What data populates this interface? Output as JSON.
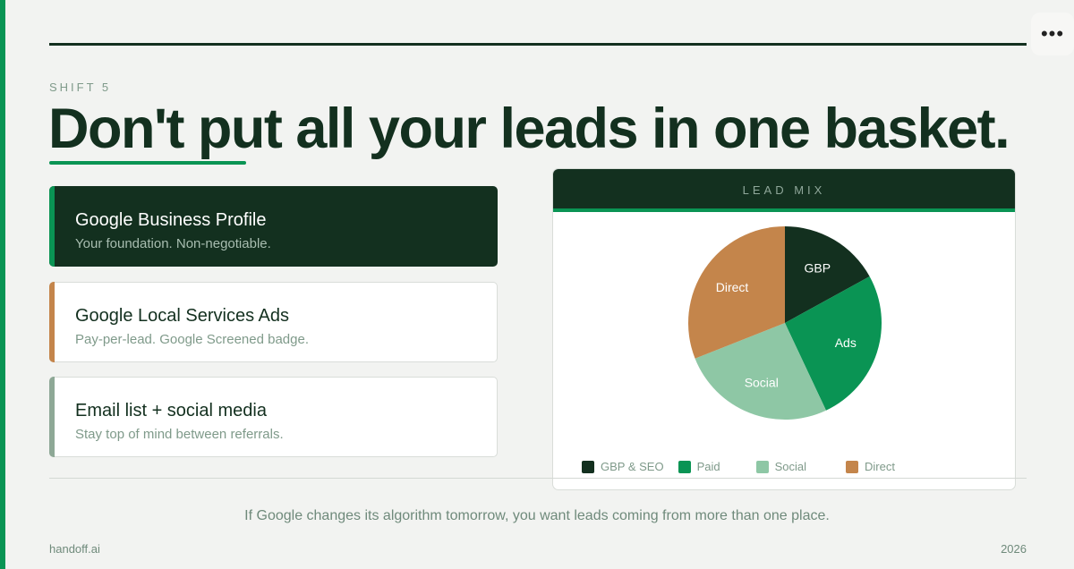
{
  "eyebrow": "SHIFT 5",
  "title": "Don't put all your leads in one basket.",
  "menu_icon": "more-horizontal-icon",
  "cards": [
    {
      "title": "Google Business Profile",
      "subtitle": "Your foundation. Non-negotiable.",
      "accent": "#0a9454"
    },
    {
      "title": "Google Local Services Ads",
      "subtitle": "Pay-per-lead. Google Screened badge.",
      "accent": "#c4854b"
    },
    {
      "title": "Email list + social media",
      "subtitle": "Stay top of mind between referrals.",
      "accent": "#8ea896"
    }
  ],
  "chart_data": {
    "type": "pie",
    "title": "LEAD MIX",
    "slice_labels": [
      "GBP",
      "Ads",
      "Social",
      "Direct"
    ],
    "legend": [
      "GBP & SEO",
      "Paid",
      "Social",
      "Direct"
    ],
    "values": [
      17,
      26,
      26,
      31
    ],
    "colors": [
      "#13301f",
      "#0a9454",
      "#8ec7a5",
      "#c4854b"
    ],
    "legend_position": "bottom"
  },
  "caption": "If Google changes its algorithm tomorrow, you want leads coming from more than one place.",
  "footer": {
    "brand": "handoff.ai",
    "year": "2026"
  }
}
